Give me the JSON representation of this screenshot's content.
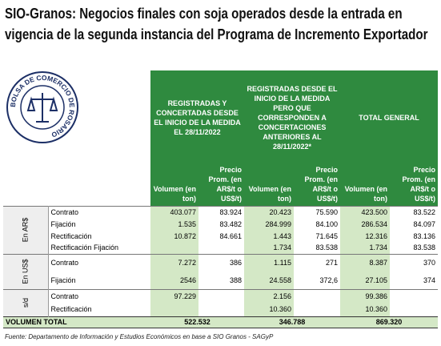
{
  "title": "SIO-Granos: Negocios finales con soja operados desde la entrada en vigencia de la segunda instancia del Programa de Incremento Exportador",
  "logo": {
    "text": "BOLSA DE COMERCIO DE ROSARIO"
  },
  "table": {
    "group_headers": [
      "REGISTRADAS Y CONCERTADAS DESDE EL INICIO DE LA MEDIDA EL 28/11/2022",
      "REGISTRADAS DESDE EL INICIO DE LA MEDIDA PERO QUE CORRESPONDEN A CONCERTACIONES ANTERIORES AL 28/11/2022*",
      "TOTAL GENERAL"
    ],
    "sub_headers": [
      "Volumen (en ton)",
      "Precio Prom. (en AR$/t o US$/t)",
      "Volumen (en ton)",
      "Precio Prom. (en AR$/t o US$/t)",
      "Volumen (en ton)",
      "Precio Prom. (en AR$/t o US$/t)"
    ],
    "groups": [
      {
        "label": "En AR$",
        "rows": [
          {
            "label": "Contrato",
            "cells": [
              "403.077",
              "83.924",
              "20.423",
              "75.590",
              "423.500",
              "83.522"
            ]
          },
          {
            "label": "Fijación",
            "cells": [
              "1.535",
              "83.482",
              "284.999",
              "84.100",
              "286.534",
              "84.097"
            ]
          },
          {
            "label": "Rectificación",
            "cells": [
              "10.872",
              "84.661",
              "1.443",
              "71.645",
              "12.316",
              "83.136"
            ]
          },
          {
            "label": "Rectificación Fijación",
            "cells": [
              null,
              null,
              "1.734",
              "83.538",
              "1.734",
              "83.538"
            ]
          }
        ]
      },
      {
        "label": "En US$",
        "rows": [
          {
            "label": "Contrato",
            "cells": [
              "7.272",
              "386",
              "1.115",
              "271",
              "8.387",
              "370"
            ]
          },
          {
            "label": "Fijación",
            "cells": [
              "2546",
              "388",
              "24.558",
              "372,6",
              "27.105",
              "374"
            ]
          }
        ]
      },
      {
        "label": "s/d",
        "rows": [
          {
            "label": "Contrato",
            "cells": [
              "97.229",
              null,
              "2.156",
              null,
              "99.386",
              null
            ]
          },
          {
            "label": "Rectificación",
            "cells": [
              null,
              null,
              "10.360",
              null,
              "10.360",
              null
            ]
          }
        ]
      }
    ],
    "total": {
      "label": "VOLUMEN TOTAL",
      "values": [
        "522.532",
        "346.788",
        "869.320"
      ]
    }
  },
  "footer": "Fuente: Departamento de Información y Estudios Económicos en base a SIO Granos - SAGyP"
}
